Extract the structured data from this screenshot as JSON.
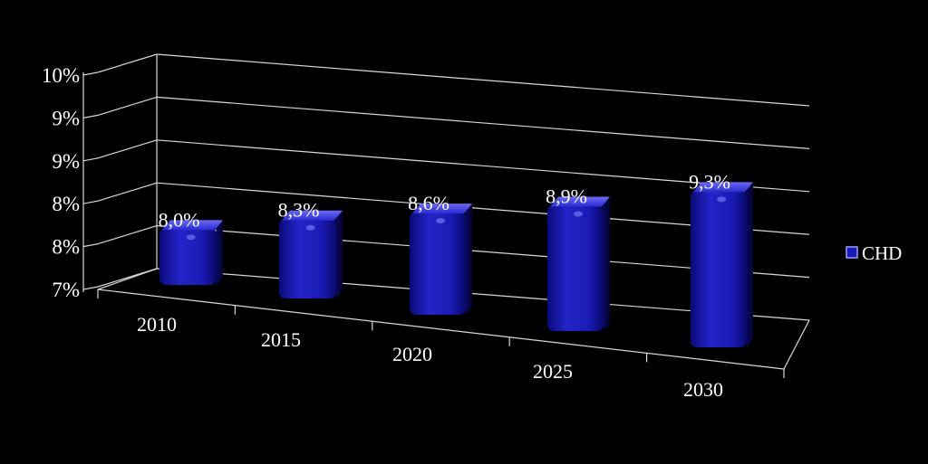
{
  "chart_data": {
    "type": "bar",
    "categories": [
      "2010",
      "2015",
      "2020",
      "2025",
      "2030"
    ],
    "series": [
      {
        "name": "CHD",
        "values": [
          8.0,
          8.3,
          8.6,
          8.9,
          9.3
        ],
        "data_labels": [
          "8,0%",
          "8,3%",
          "8,6%",
          "8,9%",
          "9,3%"
        ]
      }
    ],
    "y_tick_labels": [
      "7%",
      "8%",
      "8%",
      "9%",
      "9%",
      "10%"
    ],
    "ylim": [
      7.5,
      10
    ],
    "legend": {
      "position": "right"
    },
    "grid": true,
    "colors": {
      "bar": "#1616b8",
      "bar_highlight": "#5a5af0",
      "bar_dark": "#07075e",
      "background": "#000000",
      "grid": "#d8d8d8",
      "text": "#ffffff"
    }
  }
}
